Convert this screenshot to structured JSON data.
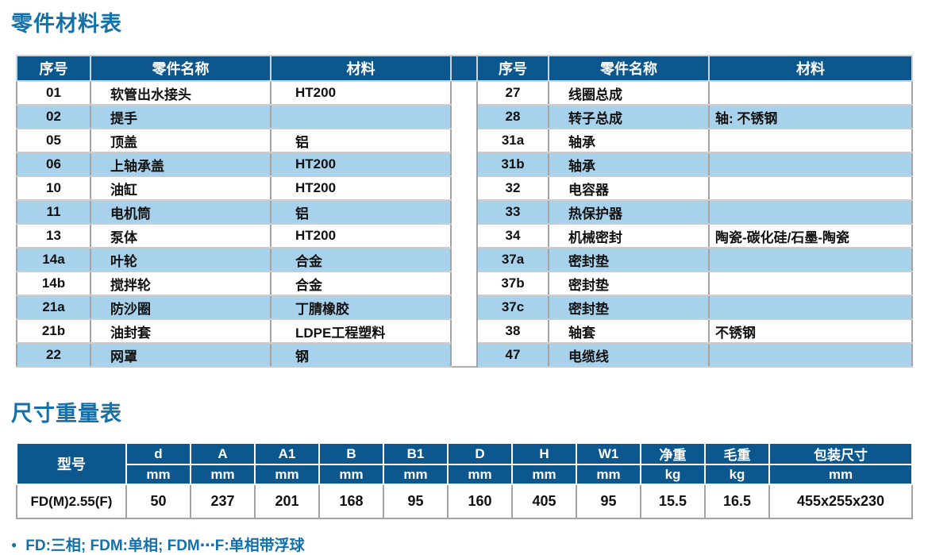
{
  "page": {
    "title1": "零件材料表",
    "title2": "尺寸重量表",
    "footer_note": "FD:三相; FDM:单相; FDM⋯F:单相带浮球"
  },
  "colors": {
    "header_bg": "#0d578f",
    "stripe_bg": "#a8d2ec",
    "accent_text": "#1470a8"
  },
  "parts_table": {
    "headers": {
      "no": "序号",
      "name": "零件名称",
      "material": "材料"
    },
    "left_rows": [
      {
        "no": "01",
        "name": "软管出水接头",
        "material": "HT200"
      },
      {
        "no": "02",
        "name": "提手",
        "material": ""
      },
      {
        "no": "05",
        "name": "顶盖",
        "material": "铝"
      },
      {
        "no": "06",
        "name": "上轴承盖",
        "material": "HT200"
      },
      {
        "no": "10",
        "name": "油缸",
        "material": "HT200"
      },
      {
        "no": "11",
        "name": "电机筒",
        "material": "铝"
      },
      {
        "no": "13",
        "name": "泵体",
        "material": "HT200"
      },
      {
        "no": "14a",
        "name": "叶轮",
        "material": "合金"
      },
      {
        "no": "14b",
        "name": "搅拌轮",
        "material": "合金"
      },
      {
        "no": "21a",
        "name": "防沙圈",
        "material": "丁腈橡胶"
      },
      {
        "no": "21b",
        "name": "油封套",
        "material": "LDPE工程塑料"
      },
      {
        "no": "22",
        "name": "网罩",
        "material": "钢"
      }
    ],
    "right_rows": [
      {
        "no": "27",
        "name": "线圈总成",
        "material": ""
      },
      {
        "no": "28",
        "name": "转子总成",
        "material": "轴: 不锈钢"
      },
      {
        "no": "31a",
        "name": "轴承",
        "material": ""
      },
      {
        "no": "31b",
        "name": "轴承",
        "material": ""
      },
      {
        "no": "32",
        "name": "电容器",
        "material": ""
      },
      {
        "no": "33",
        "name": "热保护器",
        "material": ""
      },
      {
        "no": "34",
        "name": "机械密封",
        "material": "陶瓷-碳化硅/石墨-陶瓷"
      },
      {
        "no": "37a",
        "name": "密封垫",
        "material": ""
      },
      {
        "no": "37b",
        "name": "密封垫",
        "material": ""
      },
      {
        "no": "37c",
        "name": "密封垫",
        "material": ""
      },
      {
        "no": "38",
        "name": "轴套",
        "material": "不锈钢"
      },
      {
        "no": "47",
        "name": "电缆线",
        "material": ""
      }
    ]
  },
  "dimensions_table": {
    "model_header": "型号",
    "columns": [
      {
        "label": "d",
        "unit": "mm"
      },
      {
        "label": "A",
        "unit": "mm"
      },
      {
        "label": "A1",
        "unit": "mm"
      },
      {
        "label": "B",
        "unit": "mm"
      },
      {
        "label": "B1",
        "unit": "mm"
      },
      {
        "label": "D",
        "unit": "mm"
      },
      {
        "label": "H",
        "unit": "mm"
      },
      {
        "label": "W1",
        "unit": "mm"
      },
      {
        "label": "净重",
        "unit": "kg"
      },
      {
        "label": "毛重",
        "unit": "kg"
      },
      {
        "label": "包装尺寸",
        "unit": "mm"
      }
    ],
    "row": {
      "model": "FD(M)2.55(F)",
      "values": [
        "50",
        "237",
        "201",
        "168",
        "95",
        "160",
        "405",
        "95",
        "15.5",
        "16.5",
        "455x255x230"
      ]
    }
  }
}
